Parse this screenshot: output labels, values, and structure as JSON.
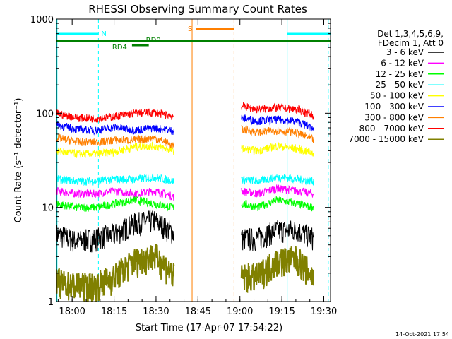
{
  "chart_data": {
    "type": "line",
    "title": "RHESSI Observing Summary Count Rates",
    "xlabel": "Start Time (17-Apr-07 17:54:22)",
    "ylabel": "Count Rate (s⁻¹ detector⁻¹)",
    "footer_date": "14-Oct-2021 17:54",
    "x_unit": "minutes since 17:54:22",
    "xlim": [
      0,
      98
    ],
    "ylim": [
      1,
      1000
    ],
    "yscale": "log",
    "x_ticks": [
      {
        "v": 5.6,
        "label": "18:00"
      },
      {
        "v": 20.6,
        "label": "18:15"
      },
      {
        "v": 35.6,
        "label": "18:30"
      },
      {
        "v": 50.6,
        "label": "18:45"
      },
      {
        "v": 65.6,
        "label": "19:00"
      },
      {
        "v": 80.6,
        "label": "19:15"
      },
      {
        "v": 95.6,
        "label": "19:30"
      }
    ],
    "y_ticks": [
      {
        "v": 1,
        "label": "1"
      },
      {
        "v": 10,
        "label": "10"
      },
      {
        "v": 100,
        "label": "100"
      },
      {
        "v": 1000,
        "label": "1000"
      }
    ],
    "legend_header": [
      "Det 1,3,4,5,6,9,",
      "FDecim 1, Att 0"
    ],
    "series": [
      {
        "name": "3 - 6 keV",
        "color": "#000000",
        "values": [
          5,
          4.2,
          4.5,
          5,
          6.5,
          7,
          5,
          0,
          0,
          4.5,
          4.5,
          5.5,
          5.5,
          4.5
        ]
      },
      {
        "name": "6 - 12 keV",
        "color": "#ff00ff",
        "values": [
          15,
          14,
          14,
          15,
          14,
          15,
          13,
          0,
          0,
          15,
          14,
          16,
          15,
          14
        ]
      },
      {
        "name": "12 - 25 keV",
        "color": "#00ff00",
        "values": [
          11,
          10,
          10,
          11,
          12,
          11,
          10,
          0,
          0,
          11,
          10,
          12,
          11,
          10
        ]
      },
      {
        "name": "25 - 50 keV",
        "color": "#00ffff",
        "values": [
          20,
          19,
          19,
          20,
          20,
          21,
          19,
          0,
          0,
          20,
          19,
          21,
          20,
          19
        ]
      },
      {
        "name": "50 - 100 keV",
        "color": "#ffff00",
        "values": [
          40,
          37,
          37,
          39,
          44,
          45,
          40,
          0,
          0,
          42,
          40,
          45,
          42,
          38
        ]
      },
      {
        "name": "100 - 300 keV",
        "color": "#0000ff",
        "values": [
          75,
          68,
          66,
          71,
          66,
          70,
          65,
          0,
          0,
          90,
          83,
          86,
          82,
          68
        ]
      },
      {
        "name": "300 - 800 keV",
        "color": "#ff7f00",
        "values": [
          55,
          50,
          49,
          52,
          52,
          55,
          45,
          0,
          0,
          68,
          63,
          66,
          62,
          52
        ]
      },
      {
        "name": "800 - 7000 keV",
        "color": "#ff0000",
        "values": [
          100,
          90,
          88,
          93,
          100,
          102,
          92,
          0,
          0,
          120,
          110,
          115,
          110,
          95
        ]
      },
      {
        "name": "7000 - 15000 keV",
        "color": "#808000",
        "values": [
          1.3,
          1.2,
          1.2,
          1.5,
          2.2,
          2.5,
          1.5,
          0,
          0,
          1.5,
          1.5,
          2.2,
          2.3,
          1.4
        ]
      }
    ],
    "series_x": [
      0,
      7,
      14,
      21,
      28,
      35,
      42,
      48,
      65,
      66,
      72,
      79,
      86,
      92
    ],
    "annotations": {
      "N_label": "N",
      "S_label": "S",
      "RD4_label": "RD4",
      "RD0_label": "RD0"
    },
    "flags": [
      {
        "label": "N",
        "color": "#00ffff",
        "segments": [
          [
            0,
            15
          ],
          [
            82.5,
            98
          ]
        ]
      },
      {
        "label": "S",
        "color": "#ff7f00",
        "segments": [
          [
            50,
            63.5
          ]
        ]
      },
      {
        "label": "RD0",
        "color": "#008000",
        "segments": [
          [
            0,
            98
          ]
        ]
      },
      {
        "label": "RD4",
        "color": "#008000",
        "segments": [
          [
            27,
            33
          ]
        ]
      }
    ],
    "vlines": [
      {
        "v": 0.2,
        "color": "#00ffff",
        "style": "solid"
      },
      {
        "v": 15,
        "color": "#00ffff",
        "style": "dashed"
      },
      {
        "v": 48.5,
        "color": "#ff7f00",
        "style": "solid"
      },
      {
        "v": 63.5,
        "color": "#ff7f00",
        "style": "dashed"
      },
      {
        "v": 82.5,
        "color": "#00ffff",
        "style": "solid"
      },
      {
        "v": 97.2,
        "color": "#00ffff",
        "style": "dashed"
      }
    ]
  }
}
